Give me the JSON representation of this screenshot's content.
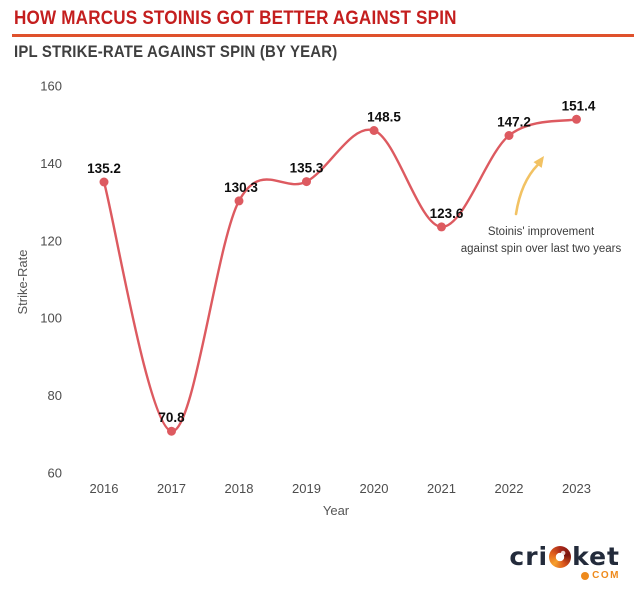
{
  "header": {
    "title": "HOW MARCUS STOINIS GOT BETTER AGAINST SPIN",
    "subtitle": "IPL STRIKE-RATE AGAINST SPIN (BY YEAR)"
  },
  "chart_data": {
    "type": "line",
    "x": [
      2016,
      2017,
      2018,
      2019,
      2020,
      2021,
      2022,
      2023
    ],
    "values": [
      135.2,
      70.8,
      130.3,
      135.3,
      148.5,
      123.6,
      147.2,
      151.4
    ],
    "xlabel": "Year",
    "ylabel": "Strike-Rate",
    "ylim": [
      60,
      160
    ],
    "yticks": [
      60,
      80,
      100,
      120,
      140,
      160
    ],
    "grid": false,
    "axis_lines": false,
    "smooth": true,
    "annotation": {
      "lines": [
        "Stoinis' improvement",
        "against spin over last two years"
      ]
    }
  },
  "footer": {
    "logo": {
      "pre": "cri",
      "post": "ket",
      "tld": "COM"
    }
  },
  "colors": {
    "title": "#c41e1e",
    "divider": "#df512c",
    "line": "#dd5a60",
    "marker": "#dd5a60",
    "arrow": "#f2c263",
    "tick": "#4d4d4d",
    "data_label": "#0d0d0d",
    "annotation_text": "#3c3c3c",
    "logo_navy": "#232b3b",
    "logo_orange": "#ee8a1c"
  }
}
